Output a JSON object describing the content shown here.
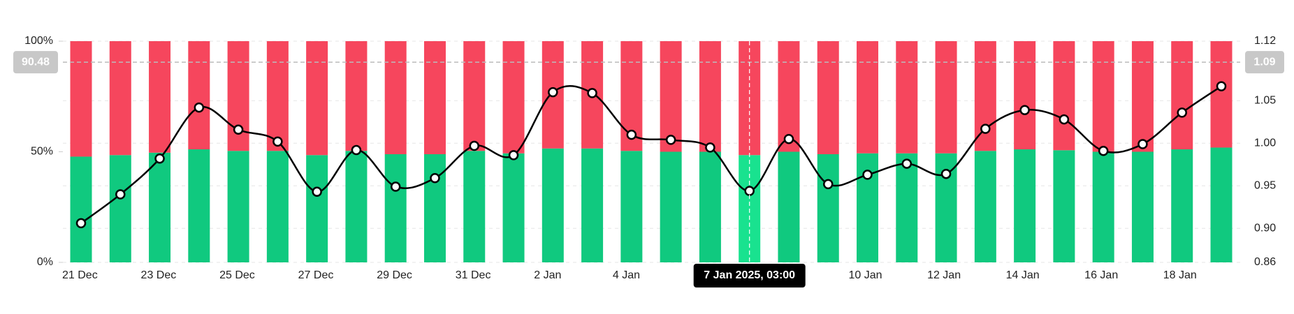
{
  "chart_data": {
    "type": "bar-line",
    "categories": [
      "21 Dec",
      null,
      "23 Dec",
      null,
      "25 Dec",
      null,
      "27 Dec",
      null,
      "29 Dec",
      null,
      "31 Dec",
      null,
      "2 Jan",
      null,
      "4 Jan",
      null,
      null,
      null,
      null,
      null,
      "10 Jan",
      null,
      "12 Jan",
      null,
      "14 Jan",
      null,
      "16 Jan",
      null,
      "18 Jan",
      null
    ],
    "series": [
      {
        "color": "#10c97f",
        "values": [
          47.8,
          48.5,
          49.6,
          51.1,
          50.4,
          50.4,
          48.5,
          50.4,
          48.9,
          48.9,
          50.4,
          49.3,
          51.5,
          51.5,
          50.4,
          50,
          50,
          48.5,
          50,
          48.9,
          49.3,
          49.3,
          49.3,
          50.4,
          51.1,
          50.7,
          50,
          50,
          51.1,
          51.9
        ]
      },
      {
        "color": "#f6465d",
        "values": [
          52.2,
          51.5,
          50.4,
          48.9,
          49.6,
          49.6,
          51.5,
          49.6,
          51.1,
          51.1,
          49.6,
          50.7,
          48.5,
          48.5,
          49.6,
          50,
          50,
          51.5,
          50,
          51.1,
          50.7,
          50.7,
          50.7,
          49.6,
          48.9,
          49.3,
          50,
          50,
          48.9,
          48.1
        ]
      },
      {
        "color": "#000000",
        "axis": "y2",
        "values": [
          0.906,
          0.94,
          0.982,
          1.042,
          1.016,
          1.002,
          0.943,
          0.992,
          0.949,
          0.959,
          0.997,
          0.986,
          1.06,
          1.059,
          1.01,
          1.004,
          0.995,
          0.944,
          1.005,
          0.952,
          0.963,
          0.976,
          0.964,
          1.017,
          1.039,
          1.028,
          0.991,
          0.999,
          1.036,
          1.067
        ]
      }
    ],
    "ylim": [
      0,
      100
    ],
    "yticks": [
      {
        "value": 0,
        "label": "0%"
      },
      {
        "value": 50,
        "label": "50%"
      },
      {
        "value": 100,
        "label": "100%"
      }
    ],
    "y2lim": [
      0.86,
      1.12
    ],
    "y2ticks": [
      0.86,
      {
        "value": 0.9,
        "label": "0.90"
      },
      0.95,
      {
        "value": 1,
        "label": "1.00"
      },
      1.05,
      1.12
    ],
    "grid": true,
    "crosshair": {
      "x": "7 Jan 2025, 03:00",
      "y": 90.48,
      "y2": 1.09
    }
  }
}
